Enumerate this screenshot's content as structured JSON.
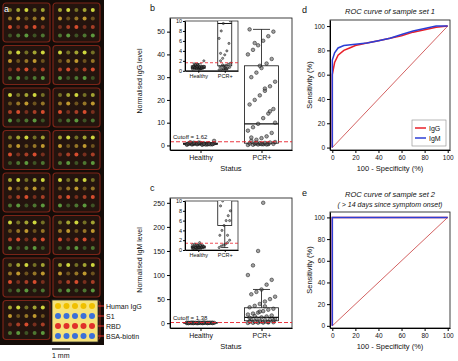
{
  "chart_data": [
    {
      "type": "image",
      "panel_label": "a",
      "legend_labels": [
        "Human IgG",
        "S1",
        "RBD",
        "BSA-biotin"
      ],
      "scale_bar": "1 mm"
    },
    {
      "type": "box",
      "panel_label": "b",
      "x_label": "Status",
      "y_label": "Normalised IgG level",
      "categories": [
        "Healthy",
        "PCR+"
      ],
      "ylim": [
        -2,
        56
      ],
      "yticks": [
        0,
        10,
        20,
        30,
        40,
        50
      ],
      "boxes": [
        {
          "whisker_low": 0.3,
          "q1": 0.5,
          "median": 0.7,
          "q3": 1.0,
          "whisker_high": 1.4
        },
        {
          "whisker_low": 0.2,
          "q1": 1.0,
          "median": 9.5,
          "q3": 35,
          "whisker_high": 51
        }
      ],
      "points": [
        [
          0.3,
          0.4,
          0.5,
          0.5,
          0.6,
          0.6,
          0.7,
          0.7,
          0.8,
          0.8,
          0.9,
          0.9,
          1.0,
          1.0,
          1.1,
          0.4,
          0.5,
          0.6,
          0.7,
          0.8,
          0.3,
          0.5,
          0.6,
          0.9,
          1.2,
          1.3,
          0.7,
          0.6,
          2.0,
          1.4
        ],
        [
          0.2,
          0.3,
          0.4,
          0.5,
          0.6,
          0.7,
          0.8,
          0.9,
          1.0,
          1.1,
          1.3,
          1.5,
          2.0,
          2.5,
          3.2,
          4.0,
          5.5,
          6.5,
          8.0,
          9.5,
          12,
          14,
          16,
          18,
          20,
          22,
          24,
          26,
          28,
          30,
          32,
          34,
          36,
          38,
          40,
          42,
          44,
          46,
          48,
          50,
          51,
          45,
          35,
          25,
          15,
          10,
          3.5,
          1.2,
          0.6,
          0.4
        ]
      ],
      "cutoff": 1.62,
      "cutoff_label": "Cutoff = 1.62",
      "inset": {
        "ylim": [
          0,
          10
        ],
        "yticks": [
          0,
          2,
          4,
          6,
          8,
          10
        ]
      }
    },
    {
      "type": "box",
      "panel_label": "c",
      "x_label": "Status",
      "y_label": "Normalised IgM level",
      "categories": [
        "Healthy",
        "PCR+"
      ],
      "ylim": [
        -10,
        260
      ],
      "yticks": [
        0,
        50,
        100,
        150,
        200,
        250
      ],
      "boxes": [
        {
          "whisker_low": 0.2,
          "q1": 0.4,
          "median": 0.6,
          "q3": 0.8,
          "whisker_high": 1.2
        },
        {
          "whisker_low": 0.5,
          "q1": 5,
          "median": 12,
          "q3": 32,
          "whisker_high": 70
        }
      ],
      "points": [
        [
          0.2,
          0.3,
          0.3,
          0.4,
          0.4,
          0.5,
          0.5,
          0.5,
          0.6,
          0.6,
          0.6,
          0.7,
          0.7,
          0.8,
          0.8,
          0.9,
          1.0,
          1.1,
          1.2,
          0.4,
          0.5,
          0.6,
          0.7,
          0.3,
          0.5,
          0.9,
          1.5,
          0.6
        ],
        [
          0.5,
          0.8,
          1.0,
          1.2,
          1.5,
          2,
          3,
          4,
          5,
          6,
          7,
          8,
          9,
          10,
          12,
          14,
          16,
          18,
          20,
          22,
          25,
          28,
          30,
          33,
          36,
          40,
          45,
          50,
          55,
          60,
          65,
          70,
          80,
          90,
          100,
          120,
          150,
          250,
          3,
          6,
          11,
          15,
          24,
          35
        ]
      ],
      "cutoff": 1.38,
      "cutoff_label": "Cutoff = 1.38",
      "inset": {
        "ylim": [
          0,
          10
        ],
        "yticks": [
          0,
          2,
          4,
          6,
          8,
          10
        ]
      }
    },
    {
      "type": "line",
      "panel_label": "d",
      "title": "ROC curve of sample set 1",
      "x_label": "100 - Specificity (%)",
      "y_label": "Sensitivity (%)",
      "xlim": [
        -2,
        102
      ],
      "xticks": [
        0,
        20,
        40,
        60,
        80,
        100
      ],
      "ylim": [
        -2,
        105
      ],
      "yticks": [
        0,
        20,
        40,
        60,
        80,
        100
      ],
      "legend": "bottom-right",
      "reference": {
        "color": "#c83a3a",
        "x": [
          0,
          100
        ],
        "values": [
          0,
          100
        ]
      },
      "series": [
        {
          "name": "IgG",
          "color": "#e8202a",
          "x": [
            0,
            0,
            2,
            5,
            10,
            15,
            20,
            30,
            40,
            50,
            60,
            70,
            80,
            90,
            100
          ],
          "values": [
            0,
            60,
            70,
            76,
            80,
            82,
            84,
            86,
            88,
            90,
            92,
            95,
            97,
            99,
            100
          ]
        },
        {
          "name": "IgM",
          "color": "#2c3fd6",
          "x": [
            0,
            0,
            2,
            5,
            10,
            20,
            30,
            40,
            50,
            60,
            70,
            80,
            90,
            100
          ],
          "values": [
            0,
            72,
            78,
            82,
            84,
            85,
            86,
            88,
            90,
            93,
            96,
            98,
            100,
            100
          ]
        }
      ]
    },
    {
      "type": "line",
      "panel_label": "e",
      "title": "ROC curve of sample set 2",
      "subtitle": "( > 14 days since symptom onset)",
      "x_label": "100 - Specificity (%)",
      "y_label": "Sensitivity (%)",
      "xlim": [
        -2,
        102
      ],
      "xticks": [
        0,
        20,
        40,
        60,
        80,
        100
      ],
      "ylim": [
        -2,
        105
      ],
      "yticks": [
        0,
        20,
        40,
        60,
        80,
        100
      ],
      "reference": {
        "color": "#c83a3a",
        "x": [
          0,
          100
        ],
        "values": [
          0,
          100
        ]
      },
      "series": [
        {
          "color": "#e8202a",
          "x": [
            0,
            0,
            100
          ],
          "values": [
            0,
            100,
            100
          ]
        },
        {
          "color": "#2c3fd6",
          "x": [
            0,
            0,
            100
          ],
          "values": [
            0,
            100,
            100
          ]
        }
      ]
    }
  ]
}
